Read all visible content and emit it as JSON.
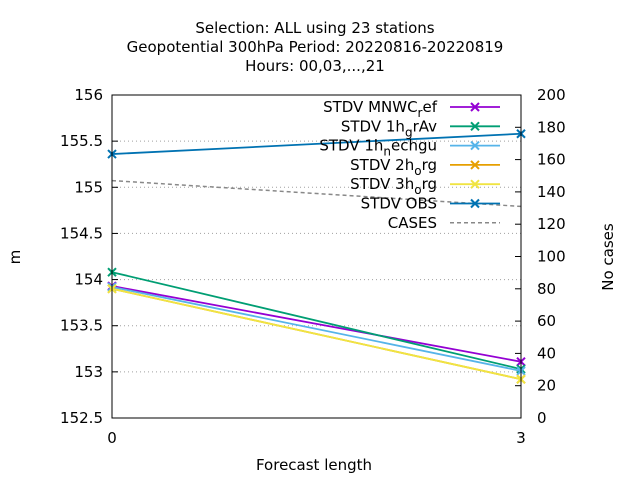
{
  "chart_data": {
    "type": "line",
    "title_lines": [
      "Selection: ALL using    23 stations",
      "Geopotential 300hPa   Period: 20220816-20220819",
      "Hours:  00,03,...,21"
    ],
    "xlabel": "Forecast length",
    "ylabel": "m",
    "y2label": "No cases",
    "x": [
      0,
      3
    ],
    "x_ticks": [
      "0",
      "3"
    ],
    "xlim": [
      0,
      3
    ],
    "ylim": [
      152.5,
      156
    ],
    "y_ticks": [
      "152.5",
      "153",
      "153.5",
      "154",
      "154.5",
      "155",
      "155.5",
      "156"
    ],
    "y2lim": [
      0,
      200
    ],
    "y2_ticks": [
      "0",
      "20",
      "40",
      "60",
      "80",
      "100",
      "120",
      "140",
      "160",
      "180",
      "200"
    ],
    "grid": true,
    "legend_position": "top-right",
    "series": [
      {
        "name": "STDV MNWC_ref",
        "label_main": "STDV MNWC",
        "label_sub": "r",
        "label_rest": "ef",
        "color": "#9400d3",
        "marker": "x",
        "axis": "y",
        "values": [
          153.93,
          153.11
        ]
      },
      {
        "name": "STDV 1h_grAv",
        "label_main": "STDV 1h",
        "label_sub": "g",
        "label_rest": "rAv",
        "color": "#009e73",
        "marker": "x",
        "axis": "y",
        "values": [
          154.08,
          153.03
        ]
      },
      {
        "name": "STDV 1h_nechgu",
        "label_main": "STDV 1h",
        "label_sub": "n",
        "label_rest": "echgu",
        "color": "#56b4e9",
        "marker": "x",
        "axis": "y",
        "values": [
          153.92,
          153.01
        ]
      },
      {
        "name": "STDV 2h_org",
        "label_main": "STDV 2h",
        "label_sub": "o",
        "label_rest": "rg",
        "color": "#e69f00",
        "marker": "x",
        "axis": "y",
        "values": [
          153.9,
          152.92
        ]
      },
      {
        "name": "STDV 3h_org",
        "label_main": "STDV 3h",
        "label_sub": "o",
        "label_rest": "rg",
        "color": "#f0e442",
        "marker": "x",
        "axis": "y",
        "values": [
          153.9,
          152.92
        ]
      },
      {
        "name": "STDV OBS",
        "label_main": "STDV OBS",
        "label_sub": "",
        "label_rest": "",
        "color": "#0072b2",
        "marker": "x",
        "axis": "y",
        "values": [
          155.36,
          155.58
        ]
      },
      {
        "name": "CASES",
        "label_main": "CASES",
        "label_sub": "",
        "label_rest": "",
        "color": "#888888",
        "marker": "none",
        "dashed": true,
        "axis": "y2",
        "values": [
          147,
          131
        ]
      }
    ]
  }
}
